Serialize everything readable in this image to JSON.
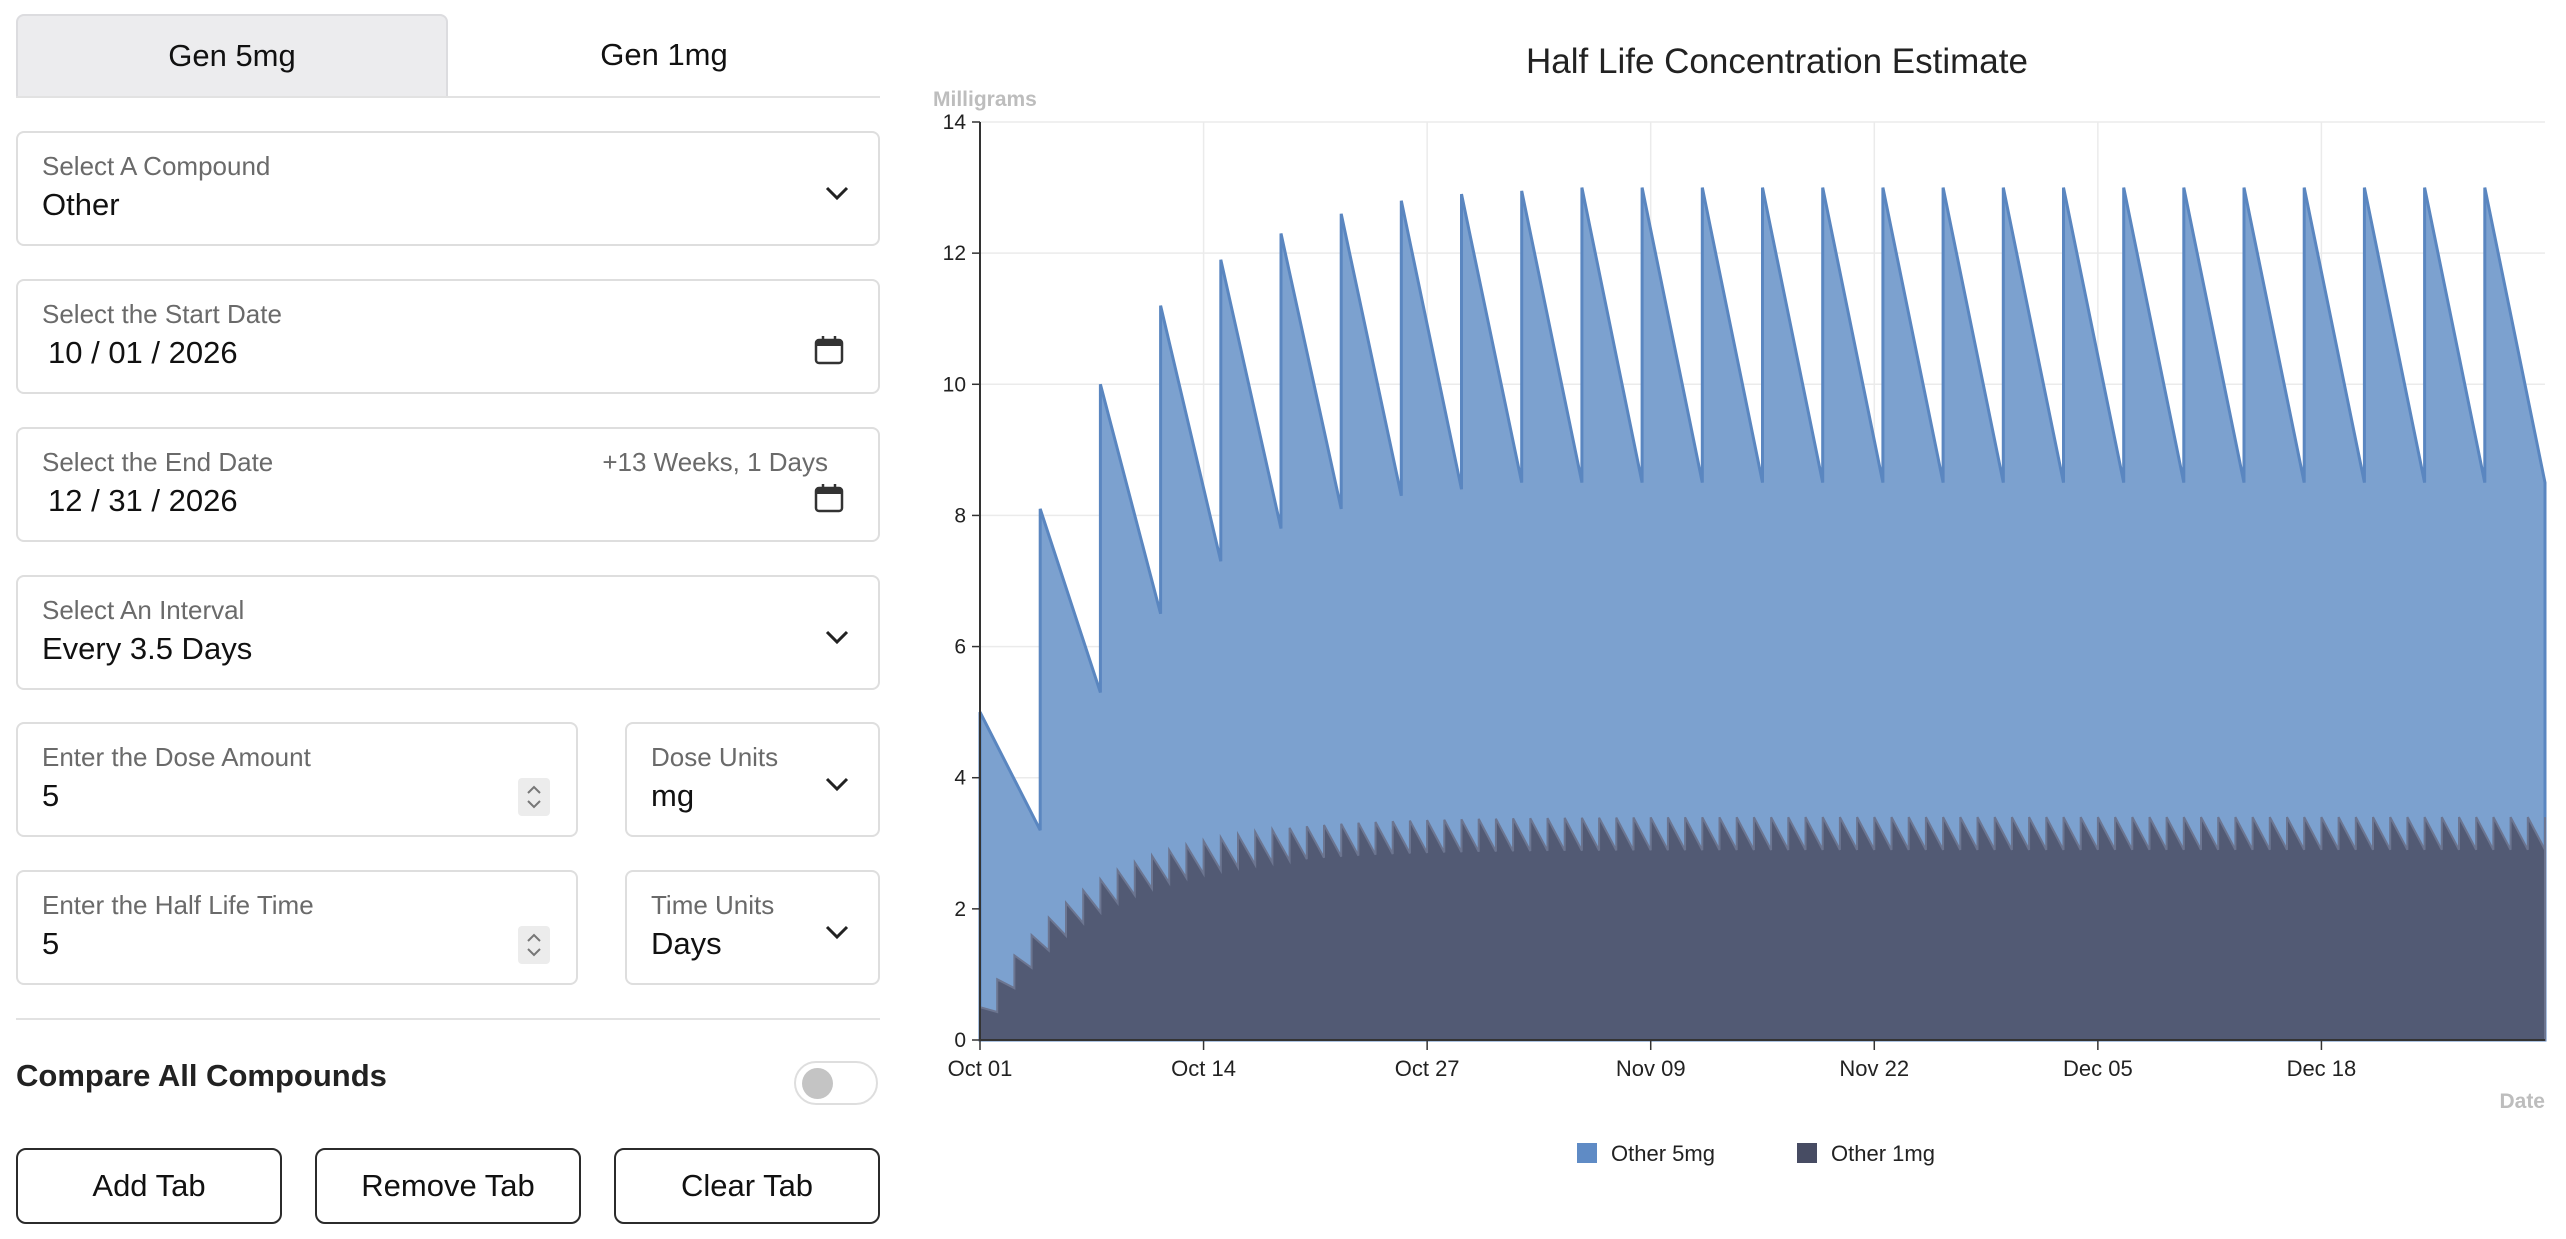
{
  "tabs": [
    {
      "label": "Gen 5mg",
      "active": true
    },
    {
      "label": "Gen 1mg",
      "active": false
    }
  ],
  "compound": {
    "label": "Select A Compound",
    "value": "Other"
  },
  "start_date": {
    "label": "Select the Start Date",
    "value": "10 / 01 / 2026"
  },
  "end_date": {
    "label": "Select the End Date",
    "value": "12 / 31 / 2026",
    "duration": "+13 Weeks, 1 Days"
  },
  "interval": {
    "label": "Select An Interval",
    "value": "Every 3.5 Days"
  },
  "dose_amount": {
    "label": "Enter the Dose Amount",
    "value": "5"
  },
  "dose_units": {
    "label": "Dose Units",
    "value": "mg"
  },
  "half_life": {
    "label": "Enter the Half Life Time",
    "value": "5"
  },
  "time_units": {
    "label": "Time Units",
    "value": "Days"
  },
  "compare": {
    "label": "Compare All Compounds",
    "enabled": false
  },
  "buttons": {
    "add": "Add Tab",
    "remove": "Remove Tab",
    "clear": "Clear Tab"
  },
  "icons": {
    "dropdown": "chevron-down-icon",
    "calendar": "calendar-icon",
    "spinner": "spinner-arrows-icon"
  },
  "colors": {
    "series_5mg": "#7ca1cf",
    "series_5mg_line": "#5a86c0",
    "series_1mg": "#525a74",
    "series_1mg_line": "#6c7590"
  },
  "chart_data": {
    "type": "area",
    "title": "Half Life Concentration Estimate",
    "ylabel": "Milligrams",
    "xlabel": "Date",
    "ylim": [
      0,
      14
    ],
    "yticks": [
      "0",
      "2",
      "4",
      "6",
      "8",
      "10",
      "12",
      "14"
    ],
    "x_range": [
      "2026-10-01",
      "2026-12-31"
    ],
    "xticks": [
      {
        "label": "Oct 01",
        "date": "2026-10-01"
      },
      {
        "label": "Oct 14",
        "date": "2026-10-14"
      },
      {
        "label": "Oct 27",
        "date": "2026-10-27"
      },
      {
        "label": "Nov 09",
        "date": "2026-11-09"
      },
      {
        "label": "Nov 22",
        "date": "2026-11-22"
      },
      {
        "label": "Dec 05",
        "date": "2026-12-05"
      },
      {
        "label": "Dec 18",
        "date": "2026-12-18"
      }
    ],
    "grid": true,
    "legend_position": "bottom-center",
    "series": [
      {
        "name": "Other 5mg",
        "dose_mg": 5,
        "interval_days": 3.5,
        "half_life_days": 5,
        "peaks": [
          5.0,
          8.1,
          10.0,
          11.2,
          11.9,
          12.3,
          12.6,
          12.8,
          12.9,
          12.95,
          13.0,
          13.0,
          13.0,
          13.0,
          13.0,
          13.0,
          13.0,
          13.0,
          13.0,
          13.0,
          13.0,
          13.0,
          13.0,
          13.0,
          13.0,
          13.0
        ],
        "troughs": [
          3.2,
          5.3,
          6.5,
          7.3,
          7.8,
          8.1,
          8.3,
          8.4,
          8.5,
          8.5,
          8.5,
          8.5,
          8.5,
          8.5,
          8.5,
          8.5,
          8.5,
          8.5,
          8.5,
          8.5,
          8.5,
          8.5,
          8.5,
          8.5,
          8.5,
          8.5
        ]
      },
      {
        "name": "Other 1mg",
        "dose_mg": 1,
        "interval_days": 1,
        "half_life_days": 5,
        "steady_state_peak": 3.4,
        "steady_state_trough": 2.9
      }
    ]
  }
}
